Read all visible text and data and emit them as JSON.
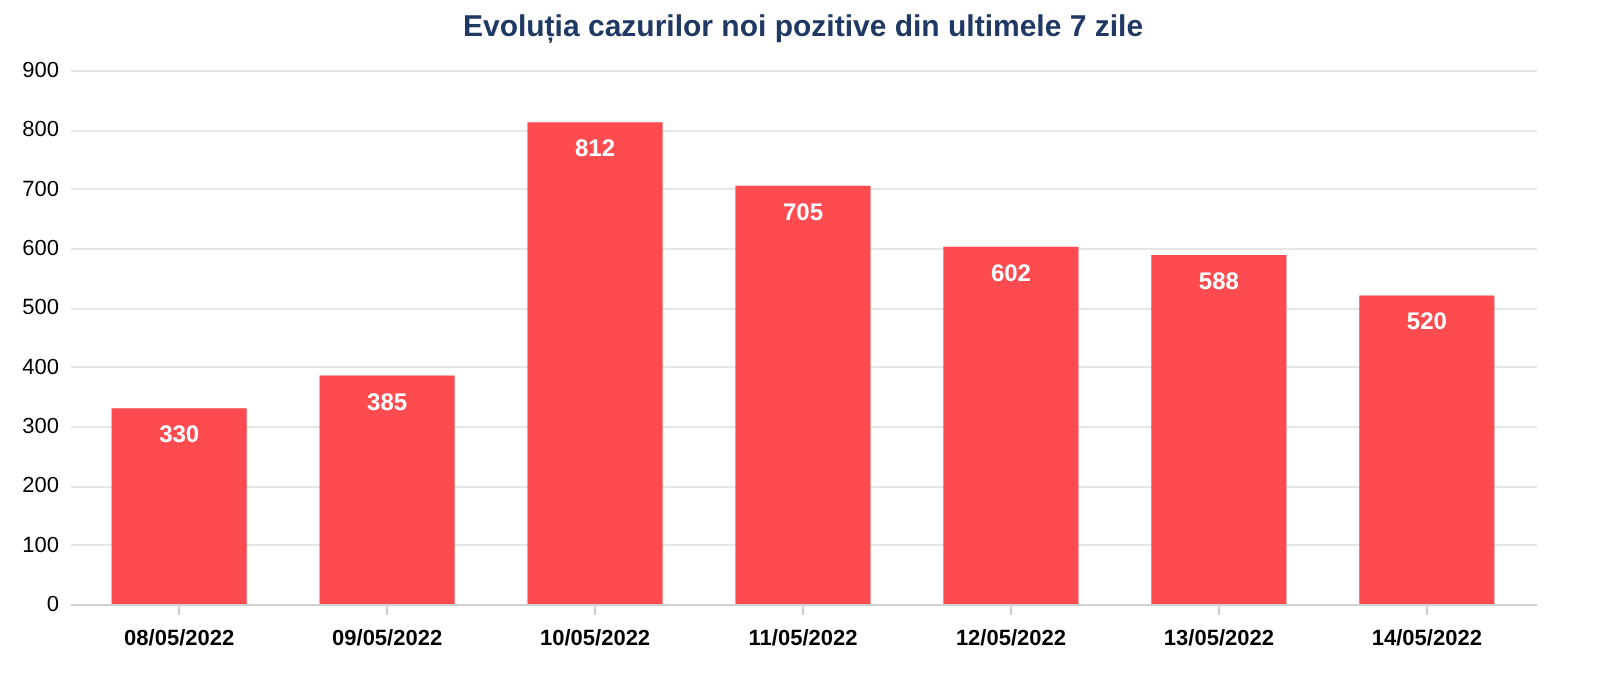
{
  "chart_data": {
    "type": "bar",
    "title": "Evoluția cazurilor noi pozitive din ultimele 7 zile",
    "categories": [
      "08/05/2022",
      "09/05/2022",
      "10/05/2022",
      "11/05/2022",
      "12/05/2022",
      "13/05/2022",
      "14/05/2022"
    ],
    "values": [
      330,
      385,
      812,
      705,
      602,
      588,
      520
    ],
    "color": "#fe4b4f",
    "ylim": [
      0,
      900
    ],
    "yticks": [
      0,
      100,
      200,
      300,
      400,
      500,
      600,
      700,
      800,
      900
    ],
    "grid": "y",
    "data_labels": true
  }
}
